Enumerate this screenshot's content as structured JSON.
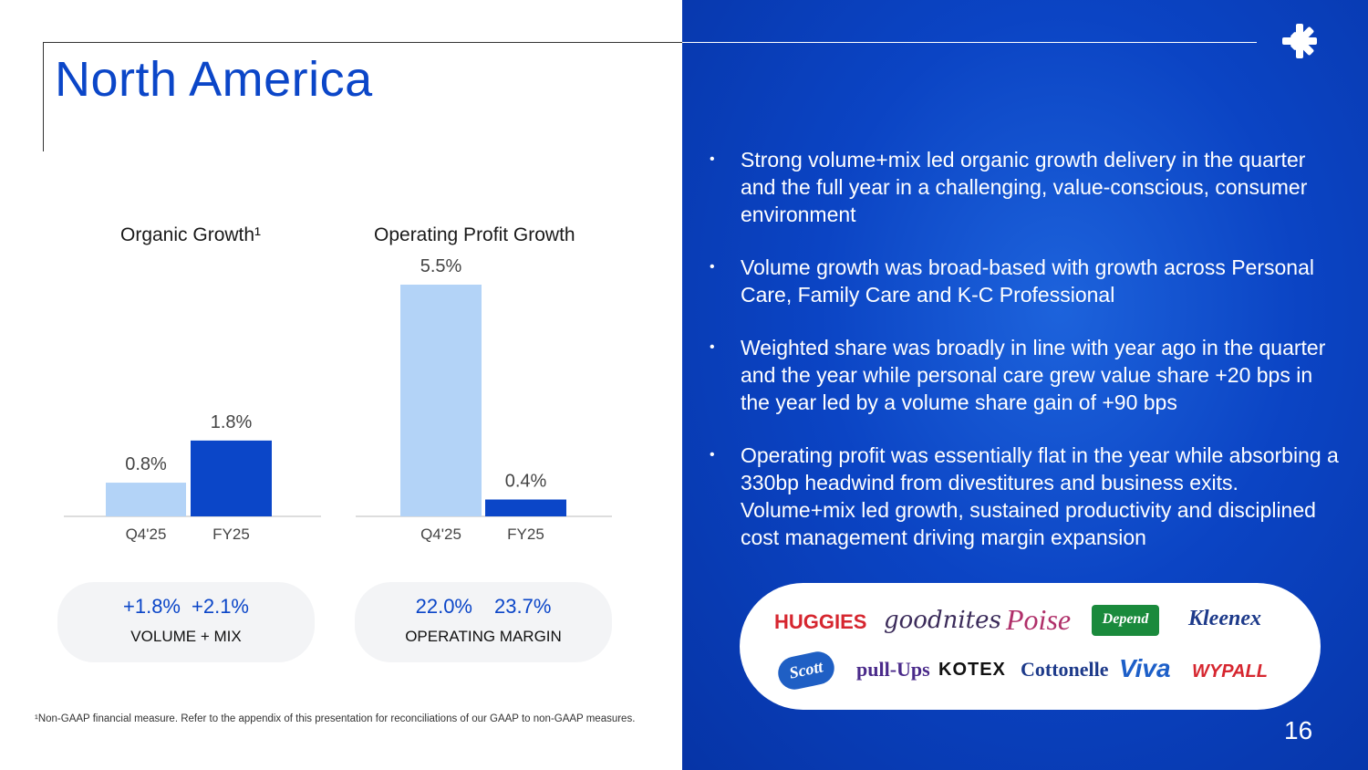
{
  "title": "North America",
  "charts": {
    "organic": {
      "title": "Organic Growth¹",
      "categories": [
        "Q4'25",
        "FY25"
      ],
      "values": [
        0.8,
        1.8
      ],
      "labels": [
        "0.8%",
        "1.8%"
      ]
    },
    "opprofit": {
      "title": "Operating Profit Growth",
      "categories": [
        "Q4'25",
        "FY25"
      ],
      "values": [
        5.5,
        0.4
      ],
      "labels": [
        "5.5%",
        "0.4%"
      ]
    }
  },
  "chart_data": [
    {
      "type": "bar",
      "title": "Organic Growth¹",
      "categories": [
        "Q4'25",
        "FY25"
      ],
      "values": [
        0.8,
        1.8
      ],
      "colors": [
        "#b3d3f7",
        "#0b46c8"
      ]
    },
    {
      "type": "bar",
      "title": "Operating Profit Growth",
      "categories": [
        "Q4'25",
        "FY25"
      ],
      "values": [
        5.5,
        0.4
      ],
      "colors": [
        "#b3d3f7",
        "#0b46c8"
      ]
    }
  ],
  "pills": {
    "volume": {
      "v1": "+1.8%",
      "v2": "+2.1%",
      "label": "VOLUME + MIX"
    },
    "margin": {
      "v1": "22.0%",
      "v2": "23.7%",
      "label": "OPERATING MARGIN"
    }
  },
  "footnote": "¹Non-GAAP financial measure. Refer to the appendix of this presentation for reconciliations of our GAAP to non-GAAP measures.",
  "bullets": [
    "Strong volume+mix led organic growth delivery in the quarter and the full year in a challenging, value-conscious, consumer environment",
    "Volume growth was broad-based with growth across Personal Care, Family Care and K-C Professional",
    "Weighted share was broadly in line with year ago in the quarter and the year while personal care grew value share +20 bps in the year led by a volume share gain of +90 bps",
    "Operating profit was essentially flat in the year while absorbing a 330bp headwind from divestitures and business exits. Volume+mix led growth, sustained productivity and disciplined cost management driving margin expansion"
  ],
  "brands": [
    "HUGGIES",
    "goodnites",
    "Poise",
    "Depend",
    "Kleenex",
    "Scott",
    "pull-Ups",
    "KOTEX",
    "Cottonelle",
    "Viva",
    "WYPALL"
  ],
  "page_number": "16",
  "colors": {
    "accent": "#0b46c8",
    "light_bar": "#b3d3f7",
    "panel": "#0b44c4"
  }
}
